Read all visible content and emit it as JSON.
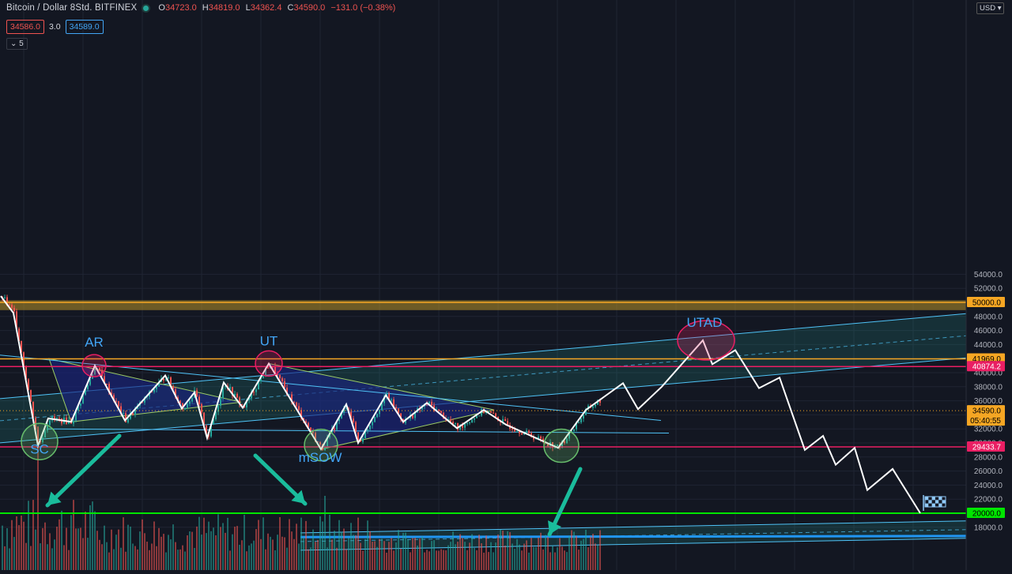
{
  "header": {
    "symbol": "Bitcoin / Dollar  8Std.  BITFINEX",
    "ohlc": [
      {
        "k": "O",
        "v": "34723.0"
      },
      {
        "k": "H",
        "v": "34819.0"
      },
      {
        "k": "L",
        "v": "34362.4"
      },
      {
        "k": "C",
        "v": "34590.0"
      }
    ],
    "change": "−131.0 (−0.38%)",
    "bid": "34586.0",
    "spread": "3.0",
    "ask": "34589.0",
    "indicator_toggle": "⌄ 5",
    "currency": "USD ▾"
  },
  "chart_data": {
    "type": "line",
    "ylim": [
      16600,
      56000
    ],
    "yticks": [
      18000,
      20000,
      22000,
      24000,
      26000,
      28000,
      30000,
      32000,
      34000,
      36000,
      38000,
      40000,
      42000,
      44000,
      46000,
      48000,
      50000,
      52000,
      54000
    ],
    "zigzag": {
      "name": "",
      "color": "#ffffff",
      "x": [
        1,
        17,
        48,
        61,
        90,
        120,
        158,
        209,
        230,
        246,
        262,
        283,
        307,
        340,
        406,
        438,
        453,
        488,
        510,
        540,
        578,
        612,
        640,
        706,
        741,
        788,
        807,
        837,
        889,
        901,
        930,
        960,
        986,
        1018,
        1041,
        1057,
        1081,
        1097,
        1129,
        1164
      ],
      "y": [
        50900,
        48500,
        29600,
        33500,
        33000,
        41000,
        33200,
        39600,
        34900,
        37200,
        30700,
        38600,
        35000,
        41300,
        29100,
        35500,
        30000,
        36800,
        33000,
        35700,
        32100,
        34700,
        32600,
        29300,
        34700,
        38500,
        34800,
        38000,
        44600,
        41200,
        43200,
        37800,
        39300,
        29000,
        31000,
        26900,
        29300,
        23300,
        26300,
        20000
      ]
    },
    "horizontal_levels": [
      {
        "value": 50000.0,
        "label": "50000.0",
        "color": "#f5a623"
      },
      {
        "value": 41969.0,
        "label": "41969.0",
        "color": "#f5a623"
      },
      {
        "value": 40874.2,
        "label": "40874.2",
        "color": "#e91e63"
      },
      {
        "value": 34590.0,
        "label": "34590.0",
        "color": "#f5a623"
      },
      {
        "value": 29433.7,
        "label": "29433.7",
        "color": "#e91e63"
      },
      {
        "value": 20000.0,
        "label": "20000.0",
        "color": "#00e600"
      }
    ],
    "countdown": "05:40:55",
    "resistance_zone": [
      48900,
      50300
    ],
    "annotations": [
      {
        "label": "AR",
        "x": 119,
        "value": 43700
      },
      {
        "label": "UT",
        "x": 340,
        "value": 43900
      },
      {
        "label": "UTAD",
        "x": 891,
        "value": 46500
      },
      {
        "label": "SC",
        "x": 50,
        "value": 28500
      },
      {
        "label": "mSOW",
        "x": 405,
        "value": 27300
      }
    ],
    "colors": {
      "background": "#131722",
      "up": "#26a69a",
      "down": "#ef5350",
      "channel": "#4fc3f7",
      "triangle": "#1a237e",
      "arrow": "#1abc9c",
      "grid": "#1f2433",
      "axis_text": "#b2b5be"
    },
    "grid": true
  }
}
